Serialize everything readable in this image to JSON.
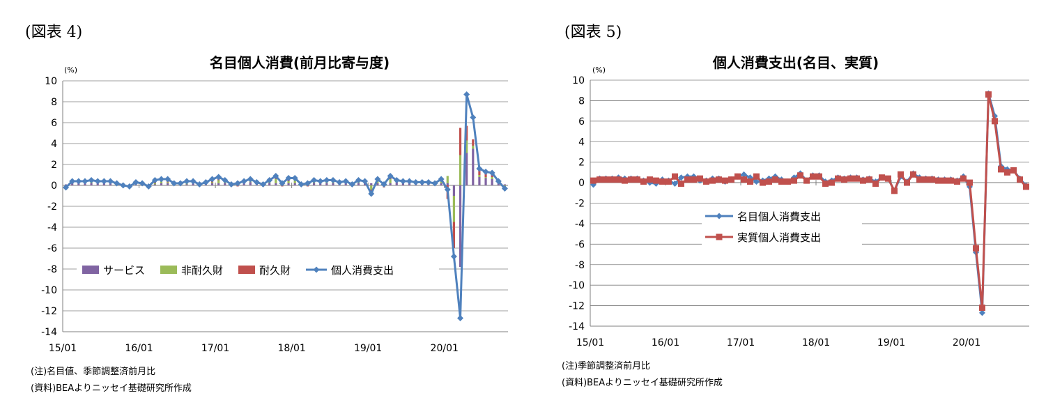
{
  "figures": [
    {
      "figure_label": "(図表 4)",
      "notes": [
        "(注)名目値、季節調整済前月比",
        "(資料)BEAよりニッセイ基礎研究所作成"
      ]
    },
    {
      "figure_label": "(図表 5)",
      "notes": [
        "(注)季節調整済前月比",
        "(資料)BEAよりニッセイ基礎研究所作成"
      ]
    }
  ],
  "colors": {
    "blue": "#4f81bd",
    "red": "#c0504d",
    "green": "#9bbb59",
    "purple": "#8064a2",
    "grid": "#7f7f7f"
  },
  "chart_data": [
    {
      "type": "bar",
      "title": "名目個人消費(前月比寄与度)",
      "ylabel": "(%)",
      "ylim": [
        -14,
        10
      ],
      "ytick_step": 2,
      "x_tick_labels": [
        "15/01",
        "16/01",
        "17/01",
        "18/01",
        "19/01",
        "20/01"
      ],
      "x_tick_positions": [
        0,
        12,
        24,
        36,
        48,
        60
      ],
      "n_points": 70,
      "grid": true,
      "legend": "bottom, inside",
      "series": [
        {
          "name": "サービス",
          "kind": "stacked-bar",
          "color": "#8064a2",
          "values": [
            0.1,
            0.2,
            0.2,
            0.2,
            0.2,
            0.2,
            0.2,
            0.2,
            0.1,
            0.1,
            0.1,
            0.2,
            0.1,
            0.1,
            0.1,
            0.2,
            0.2,
            0.2,
            0.1,
            0.1,
            0.2,
            0.1,
            0.2,
            0.2,
            0.2,
            0.2,
            0.2,
            0.2,
            0.2,
            0.3,
            0.2,
            0.2,
            0.2,
            0.2,
            0.2,
            0.2,
            0.2,
            0.2,
            0.3,
            0.2,
            0.2,
            0.2,
            0.2,
            0.2,
            0.2,
            0.2,
            0.2,
            0.2,
            0.2,
            0.2,
            0.3,
            0.2,
            0.3,
            0.2,
            0.2,
            0.2,
            0.1,
            0.2,
            0.2,
            0.2,
            0.2,
            -1.0,
            -7.8,
            3.1,
            3.5,
            0.8,
            0.7,
            0.6,
            0.3,
            0.1
          ]
        },
        {
          "name": "非耐久財",
          "kind": "stacked-bar",
          "color": "#9bbb59",
          "values": [
            -0.1,
            0.1,
            0.1,
            0.1,
            0.2,
            0.1,
            0.1,
            0.1,
            0.0,
            -0.1,
            -0.1,
            0.1,
            0.1,
            0.0,
            0.1,
            0.3,
            0.1,
            0.0,
            0.1,
            0.2,
            0.1,
            0.0,
            0.1,
            0.1,
            0.3,
            0.2,
            -0.1,
            0.1,
            0.0,
            0.2,
            0.0,
            0.0,
            0.2,
            0.4,
            0.1,
            0.2,
            0.3,
            -0.1,
            0.0,
            0.2,
            0.1,
            0.2,
            0.1,
            0.1,
            0.1,
            0.0,
            0.2,
            0.1,
            -0.4,
            0.3,
            -0.1,
            0.4,
            0.1,
            0.1,
            0.0,
            0.1,
            0.0,
            0.1,
            0.0,
            0.2,
            0.7,
            -2.5,
            2.9,
            1.2,
            0.3,
            0.2,
            0.1,
            0.2,
            0.0,
            -0.2
          ]
        },
        {
          "name": "耐久財",
          "kind": "stacked-bar",
          "color": "#c0504d",
          "values": [
            -0.2,
            0.1,
            0.1,
            0.1,
            0.1,
            0.1,
            0.1,
            0.1,
            0.1,
            0.0,
            -0.1,
            0.0,
            0.0,
            -0.2,
            0.3,
            0.1,
            0.3,
            0.0,
            0.0,
            0.1,
            0.1,
            0.0,
            0.0,
            0.3,
            0.3,
            0.1,
            0.0,
            -0.1,
            0.2,
            0.1,
            0.1,
            -0.1,
            0.1,
            0.3,
            -0.1,
            0.3,
            0.2,
            0.0,
            -0.1,
            0.1,
            0.1,
            0.1,
            0.2,
            0.0,
            0.1,
            -0.1,
            0.1,
            0.1,
            -0.6,
            0.1,
            -0.1,
            0.3,
            0.1,
            0.1,
            0.2,
            0.0,
            0.1,
            0.0,
            0.0,
            0.2,
            -1.3,
            -2.5,
            2.6,
            1.4,
            0.6,
            0.4,
            0.5,
            0.4,
            0.1,
            -0.2
          ]
        },
        {
          "name": "個人消費支出",
          "kind": "line",
          "color": "#4f81bd",
          "values": [
            -0.2,
            0.4,
            0.4,
            0.4,
            0.5,
            0.4,
            0.4,
            0.4,
            0.2,
            0.0,
            -0.1,
            0.3,
            0.2,
            -0.1,
            0.5,
            0.6,
            0.6,
            0.2,
            0.2,
            0.4,
            0.4,
            0.1,
            0.3,
            0.6,
            0.8,
            0.5,
            0.1,
            0.2,
            0.4,
            0.6,
            0.3,
            0.1,
            0.5,
            0.9,
            0.2,
            0.7,
            0.7,
            0.1,
            0.2,
            0.5,
            0.4,
            0.5,
            0.5,
            0.3,
            0.4,
            0.1,
            0.5,
            0.4,
            -0.8,
            0.6,
            0.1,
            0.9,
            0.5,
            0.4,
            0.4,
            0.3,
            0.3,
            0.3,
            0.2,
            0.6,
            -0.4,
            -6.8,
            -12.7,
            8.7,
            6.5,
            1.6,
            1.3,
            1.2,
            0.4,
            -0.3
          ]
        }
      ]
    },
    {
      "type": "line",
      "title": "個人消費支出(名目、実質)",
      "ylabel": "(%)",
      "ylim": [
        -14,
        10
      ],
      "ytick_step": 2,
      "x_tick_labels": [
        "15/01",
        "16/01",
        "17/01",
        "18/01",
        "19/01",
        "20/01"
      ],
      "x_tick_positions": [
        0,
        12,
        24,
        36,
        48,
        60
      ],
      "n_points": 70,
      "grid": true,
      "legend": "center, inside",
      "series": [
        {
          "name": "名目個人消費支出",
          "marker": "diamond",
          "color": "#4f81bd",
          "values": [
            -0.2,
            0.4,
            0.4,
            0.4,
            0.5,
            0.4,
            0.4,
            0.4,
            0.2,
            0.0,
            -0.1,
            0.3,
            0.2,
            -0.1,
            0.5,
            0.6,
            0.6,
            0.2,
            0.2,
            0.4,
            0.4,
            0.1,
            0.3,
            0.6,
            0.8,
            0.5,
            0.1,
            0.2,
            0.4,
            0.6,
            0.3,
            0.1,
            0.5,
            0.9,
            0.2,
            0.7,
            0.7,
            0.1,
            0.2,
            0.5,
            0.4,
            0.5,
            0.5,
            0.3,
            0.4,
            0.1,
            0.5,
            0.4,
            -0.8,
            0.6,
            0.1,
            0.9,
            0.5,
            0.4,
            0.4,
            0.3,
            0.3,
            0.3,
            0.2,
            0.6,
            -0.4,
            -6.8,
            -12.7,
            8.7,
            6.5,
            1.6,
            1.3,
            1.2,
            0.4,
            -0.3
          ]
        },
        {
          "name": "実質個人消費支出",
          "marker": "square",
          "color": "#c0504d",
          "values": [
            0.2,
            0.3,
            0.3,
            0.3,
            0.3,
            0.2,
            0.3,
            0.3,
            0.1,
            0.3,
            0.2,
            0.1,
            0.1,
            0.6,
            -0.1,
            0.3,
            0.3,
            0.4,
            0.1,
            0.2,
            0.3,
            0.2,
            0.3,
            0.6,
            0.3,
            0.1,
            0.6,
            0.0,
            0.1,
            0.3,
            0.1,
            0.1,
            0.2,
            0.7,
            0.2,
            0.6,
            0.6,
            -0.1,
            0.0,
            0.4,
            0.3,
            0.4,
            0.4,
            0.2,
            0.3,
            -0.1,
            0.5,
            0.4,
            -0.8,
            0.8,
            0.0,
            0.8,
            0.3,
            0.3,
            0.3,
            0.2,
            0.2,
            0.2,
            0.1,
            0.4,
            0.0,
            -6.4,
            -12.2,
            8.6,
            6.0,
            1.3,
            1.0,
            1.2,
            0.3,
            -0.4
          ]
        }
      ]
    }
  ]
}
